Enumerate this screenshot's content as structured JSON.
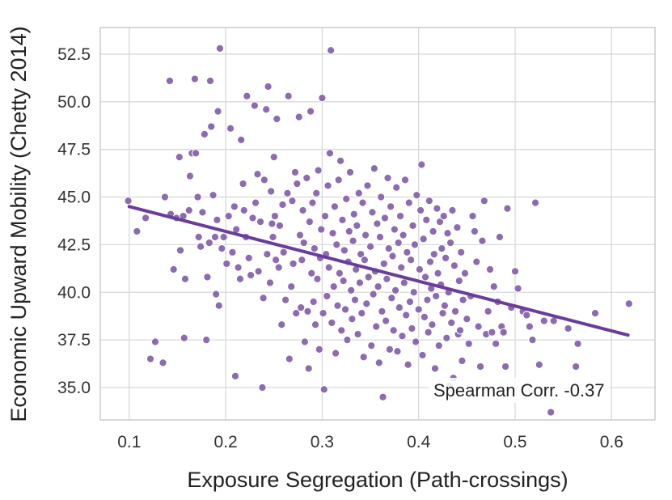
{
  "chart_data": {
    "type": "scatter",
    "title": "",
    "xlabel": "Exposure Segregation (Path-crossings)",
    "ylabel": "Economic Upward Mobility (Chetty 2014)",
    "xlim": [
      0.07,
      0.645
    ],
    "ylim": [
      33.3,
      53.9
    ],
    "xticks": [
      0.1,
      0.2,
      0.3,
      0.4,
      0.5,
      0.6
    ],
    "xtick_labels": [
      "0.1",
      "0.2",
      "0.3",
      "0.4",
      "0.5",
      "0.6"
    ],
    "yticks": [
      35.0,
      37.5,
      40.0,
      42.5,
      45.0,
      47.5,
      50.0,
      52.5
    ],
    "ytick_labels": [
      "35.0",
      "37.5",
      "40.0",
      "42.5",
      "45.0",
      "47.5",
      "50.0",
      "52.5"
    ],
    "grid": true,
    "point_color": "#8c6bb1",
    "line_color": "#6a3d9a",
    "annotation": "Spearman Corr. -0.37",
    "regression_line": {
      "x": [
        0.1,
        0.617
      ],
      "y": [
        44.5,
        37.75
      ]
    },
    "points": [
      [
        0.099,
        44.8
      ],
      [
        0.108,
        43.2
      ],
      [
        0.117,
        43.9
      ],
      [
        0.122,
        36.5
      ],
      [
        0.127,
        37.4
      ],
      [
        0.135,
        36.3
      ],
      [
        0.137,
        45.0
      ],
      [
        0.142,
        51.1
      ],
      [
        0.143,
        44.1
      ],
      [
        0.146,
        41.2
      ],
      [
        0.149,
        43.9
      ],
      [
        0.152,
        47.1
      ],
      [
        0.153,
        42.2
      ],
      [
        0.156,
        44.0
      ],
      [
        0.157,
        37.6
      ],
      [
        0.158,
        40.7
      ],
      [
        0.162,
        44.3
      ],
      [
        0.163,
        46.1
      ],
      [
        0.165,
        47.3
      ],
      [
        0.168,
        51.2
      ],
      [
        0.169,
        47.3
      ],
      [
        0.171,
        45.0
      ],
      [
        0.172,
        42.9
      ],
      [
        0.174,
        42.4
      ],
      [
        0.176,
        44.2
      ],
      [
        0.178,
        48.3
      ],
      [
        0.18,
        37.5
      ],
      [
        0.181,
        40.8
      ],
      [
        0.183,
        42.6
      ],
      [
        0.184,
        51.1
      ],
      [
        0.185,
        48.7
      ],
      [
        0.187,
        45.1
      ],
      [
        0.189,
        42.9
      ],
      [
        0.19,
        39.9
      ],
      [
        0.191,
        43.8
      ],
      [
        0.192,
        49.5
      ],
      [
        0.193,
        39.3
      ],
      [
        0.194,
        52.8
      ],
      [
        0.196,
        42.3
      ],
      [
        0.198,
        42.9
      ],
      [
        0.201,
        41.5
      ],
      [
        0.203,
        44.0
      ],
      [
        0.205,
        48.6
      ],
      [
        0.207,
        42.1
      ],
      [
        0.209,
        44.5
      ],
      [
        0.21,
        35.6
      ],
      [
        0.211,
        43.3
      ],
      [
        0.213,
        41.3
      ],
      [
        0.215,
        40.7
      ],
      [
        0.216,
        48.0
      ],
      [
        0.218,
        45.7
      ],
      [
        0.219,
        44.3
      ],
      [
        0.221,
        42.9
      ],
      [
        0.222,
        50.3
      ],
      [
        0.224,
        41.8
      ],
      [
        0.226,
        40.9
      ],
      [
        0.228,
        43.9
      ],
      [
        0.23,
        49.8
      ],
      [
        0.231,
        44.7
      ],
      [
        0.233,
        46.2
      ],
      [
        0.234,
        41.1
      ],
      [
        0.236,
        43.7
      ],
      [
        0.238,
        35.0
      ],
      [
        0.239,
        39.7
      ],
      [
        0.24,
        45.9
      ],
      [
        0.242,
        49.6
      ],
      [
        0.243,
        42.0
      ],
      [
        0.244,
        50.8
      ],
      [
        0.246,
        40.5
      ],
      [
        0.247,
        45.3
      ],
      [
        0.248,
        43.6
      ],
      [
        0.249,
        42.9
      ],
      [
        0.25,
        47.1
      ],
      [
        0.251,
        44.0
      ],
      [
        0.252,
        41.7
      ],
      [
        0.253,
        49.1
      ],
      [
        0.255,
        41.3
      ],
      [
        0.256,
        43.5
      ],
      [
        0.258,
        38.3
      ],
      [
        0.259,
        44.6
      ],
      [
        0.26,
        42.1
      ],
      [
        0.262,
        39.6
      ],
      [
        0.264,
        45.2
      ],
      [
        0.265,
        50.3
      ],
      [
        0.266,
        36.5
      ],
      [
        0.268,
        40.3
      ],
      [
        0.269,
        44.8
      ],
      [
        0.27,
        41.5
      ],
      [
        0.272,
        46.3
      ],
      [
        0.273,
        38.9
      ],
      [
        0.274,
        45.7
      ],
      [
        0.276,
        49.2
      ],
      [
        0.277,
        43.0
      ],
      [
        0.278,
        39.2
      ],
      [
        0.279,
        41.7
      ],
      [
        0.28,
        44.3
      ],
      [
        0.281,
        42.6
      ],
      [
        0.282,
        37.4
      ],
      [
        0.284,
        46.0
      ],
      [
        0.285,
        39.0
      ],
      [
        0.286,
        36.0
      ],
      [
        0.287,
        43.7
      ],
      [
        0.288,
        49.5
      ],
      [
        0.289,
        41.0
      ],
      [
        0.29,
        44.7
      ],
      [
        0.291,
        39.5
      ],
      [
        0.292,
        42.3
      ],
      [
        0.293,
        38.3
      ],
      [
        0.294,
        45.2
      ],
      [
        0.295,
        40.7
      ],
      [
        0.296,
        46.4
      ],
      [
        0.297,
        37.0
      ],
      [
        0.298,
        41.8
      ],
      [
        0.299,
        43.3
      ],
      [
        0.3,
        50.2
      ],
      [
        0.301,
        38.9
      ],
      [
        0.302,
        34.9
      ],
      [
        0.303,
        44.0
      ],
      [
        0.304,
        42.0
      ],
      [
        0.305,
        39.8
      ],
      [
        0.306,
        45.6
      ],
      [
        0.307,
        41.3
      ],
      [
        0.308,
        47.3
      ],
      [
        0.309,
        52.7
      ],
      [
        0.31,
        38.4
      ],
      [
        0.311,
        43.1
      ],
      [
        0.312,
        40.3
      ],
      [
        0.313,
        44.5
      ],
      [
        0.314,
        36.8
      ],
      [
        0.315,
        42.5
      ],
      [
        0.316,
        39.3
      ],
      [
        0.317,
        45.9
      ],
      [
        0.318,
        41.0
      ],
      [
        0.319,
        46.9
      ],
      [
        0.32,
        38.0
      ],
      [
        0.321,
        43.8
      ],
      [
        0.322,
        40.6
      ],
      [
        0.323,
        42.2
      ],
      [
        0.324,
        39.1
      ],
      [
        0.325,
        44.9
      ],
      [
        0.326,
        37.5
      ],
      [
        0.327,
        41.6
      ],
      [
        0.328,
        43.2
      ],
      [
        0.329,
        46.3
      ],
      [
        0.33,
        40.1
      ],
      [
        0.331,
        38.6
      ],
      [
        0.332,
        42.7
      ],
      [
        0.333,
        44.1
      ],
      [
        0.334,
        39.6
      ],
      [
        0.335,
        41.2
      ],
      [
        0.336,
        43.5
      ],
      [
        0.337,
        37.8
      ],
      [
        0.338,
        45.2
      ],
      [
        0.339,
        40.5
      ],
      [
        0.34,
        42.0
      ],
      [
        0.341,
        38.9
      ],
      [
        0.342,
        44.7
      ],
      [
        0.343,
        36.6
      ],
      [
        0.344,
        41.7
      ],
      [
        0.345,
        43.0
      ],
      [
        0.346,
        39.4
      ],
      [
        0.347,
        45.6
      ],
      [
        0.348,
        40.8
      ],
      [
        0.35,
        42.4
      ],
      [
        0.351,
        37.2
      ],
      [
        0.352,
        44.2
      ],
      [
        0.353,
        39.9
      ],
      [
        0.354,
        46.5
      ],
      [
        0.355,
        41.1
      ],
      [
        0.356,
        38.2
      ],
      [
        0.357,
        43.6
      ],
      [
        0.358,
        40.3
      ],
      [
        0.359,
        36.3
      ],
      [
        0.36,
        42.9
      ],
      [
        0.361,
        45.0
      ],
      [
        0.362,
        39.0
      ],
      [
        0.363,
        34.5
      ],
      [
        0.364,
        41.5
      ],
      [
        0.365,
        43.9
      ],
      [
        0.366,
        38.5
      ],
      [
        0.367,
        40.7
      ],
      [
        0.368,
        46.0
      ],
      [
        0.369,
        42.3
      ],
      [
        0.37,
        37.0
      ],
      [
        0.371,
        44.5
      ],
      [
        0.372,
        39.7
      ],
      [
        0.373,
        41.9
      ],
      [
        0.374,
        38.0
      ],
      [
        0.375,
        43.3
      ],
      [
        0.376,
        40.1
      ],
      [
        0.377,
        45.5
      ],
      [
        0.378,
        36.9
      ],
      [
        0.379,
        42.6
      ],
      [
        0.38,
        39.2
      ],
      [
        0.381,
        44.0
      ],
      [
        0.382,
        41.3
      ],
      [
        0.383,
        37.7
      ],
      [
        0.384,
        43.0
      ],
      [
        0.385,
        40.5
      ],
      [
        0.386,
        45.9
      ],
      [
        0.387,
        38.8
      ],
      [
        0.388,
        42.1
      ],
      [
        0.389,
        36.2
      ],
      [
        0.39,
        44.7
      ],
      [
        0.391,
        39.5
      ],
      [
        0.392,
        41.7
      ],
      [
        0.393,
        38.1
      ],
      [
        0.394,
        43.5
      ],
      [
        0.395,
        40.0
      ],
      [
        0.396,
        42.5
      ],
      [
        0.397,
        37.4
      ],
      [
        0.398,
        45.1
      ],
      [
        0.4,
        39.1
      ],
      [
        0.401,
        41.2
      ],
      [
        0.402,
        44.3
      ],
      [
        0.403,
        46.7
      ],
      [
        0.404,
        36.7
      ],
      [
        0.405,
        42.8
      ],
      [
        0.406,
        38.7
      ],
      [
        0.407,
        40.8
      ],
      [
        0.408,
        43.8
      ],
      [
        0.409,
        39.6
      ],
      [
        0.41,
        37.9
      ],
      [
        0.411,
        44.8
      ],
      [
        0.412,
        41.6
      ],
      [
        0.413,
        40.2
      ],
      [
        0.414,
        38.3
      ],
      [
        0.415,
        43.2
      ],
      [
        0.416,
        42.0
      ],
      [
        0.417,
        36.0
      ],
      [
        0.418,
        39.8
      ],
      [
        0.419,
        44.4
      ],
      [
        0.42,
        41.0
      ],
      [
        0.421,
        37.2
      ],
      [
        0.422,
        43.7
      ],
      [
        0.423,
        40.4
      ],
      [
        0.424,
        42.3
      ],
      [
        0.425,
        38.9
      ],
      [
        0.426,
        44.0
      ],
      [
        0.427,
        39.3
      ],
      [
        0.428,
        41.8
      ],
      [
        0.429,
        37.6
      ],
      [
        0.43,
        43.1
      ],
      [
        0.431,
        40.0
      ],
      [
        0.432,
        35.1
      ],
      [
        0.433,
        42.6
      ],
      [
        0.434,
        38.4
      ],
      [
        0.435,
        44.3
      ],
      [
        0.436,
        35.5
      ],
      [
        0.437,
        41.4
      ],
      [
        0.438,
        39.0
      ],
      [
        0.44,
        43.4
      ],
      [
        0.441,
        37.8
      ],
      [
        0.442,
        40.6
      ],
      [
        0.443,
        38.0
      ],
      [
        0.444,
        42.1
      ],
      [
        0.445,
        36.4
      ],
      [
        0.446,
        39.6
      ],
      [
        0.448,
        41.0
      ],
      [
        0.45,
        38.6
      ],
      [
        0.452,
        37.3
      ],
      [
        0.454,
        39.8
      ],
      [
        0.456,
        44.0
      ],
      [
        0.458,
        43.2
      ],
      [
        0.46,
        41.6
      ],
      [
        0.462,
        38.2
      ],
      [
        0.464,
        36.1
      ],
      [
        0.466,
        42.7
      ],
      [
        0.468,
        44.8
      ],
      [
        0.47,
        37.8
      ],
      [
        0.472,
        39.0
      ],
      [
        0.474,
        41.2
      ],
      [
        0.476,
        37.9
      ],
      [
        0.478,
        40.3
      ],
      [
        0.48,
        37.3
      ],
      [
        0.482,
        39.5
      ],
      [
        0.484,
        42.9
      ],
      [
        0.486,
        38.2
      ],
      [
        0.488,
        37.9
      ],
      [
        0.49,
        36.1
      ],
      [
        0.492,
        44.4
      ],
      [
        0.496,
        39.2
      ],
      [
        0.5,
        41.1
      ],
      [
        0.503,
        40.2
      ],
      [
        0.508,
        39.0
      ],
      [
        0.512,
        38.8
      ],
      [
        0.515,
        38.2
      ],
      [
        0.518,
        37.5
      ],
      [
        0.521,
        44.7
      ],
      [
        0.525,
        36.2
      ],
      [
        0.53,
        38.5
      ],
      [
        0.537,
        33.7
      ],
      [
        0.54,
        38.5
      ],
      [
        0.555,
        38.1
      ],
      [
        0.563,
        36.1
      ],
      [
        0.565,
        37.3
      ],
      [
        0.583,
        38.9
      ],
      [
        0.618,
        39.4
      ]
    ]
  }
}
